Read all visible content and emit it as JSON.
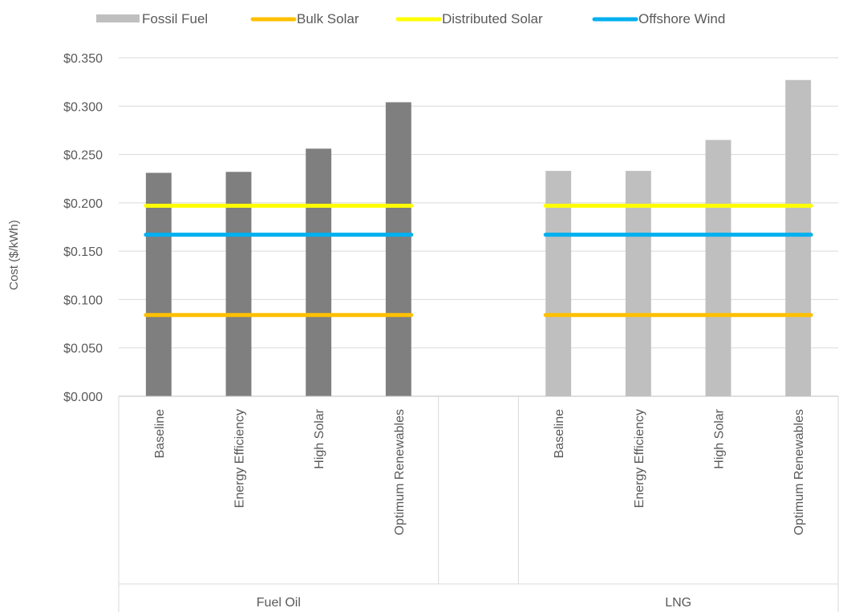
{
  "chart_data": {
    "type": "bar",
    "ylabel": "Cost ($/kWh)",
    "ylim": [
      0,
      0.35
    ],
    "yticks": [
      0,
      0.05,
      0.1,
      0.15,
      0.2,
      0.25,
      0.3,
      0.35
    ],
    "ytick_labels": [
      "$0.000",
      "$0.050",
      "$0.100",
      "$0.150",
      "$0.200",
      "$0.250",
      "$0.300",
      "$0.350"
    ],
    "grid": true,
    "legend_position": "top",
    "legend": [
      {
        "name": "Fossil Fuel",
        "kind": "bar",
        "color": "#bfbfbf"
      },
      {
        "name": "Bulk Solar",
        "kind": "line",
        "color": "#ffc000"
      },
      {
        "name": "Distributed Solar",
        "kind": "line",
        "color": "#ffff00"
      },
      {
        "name": "Offshore Wind",
        "kind": "line",
        "color": "#00b0f0"
      }
    ],
    "groups": [
      {
        "name": "Fuel Oil",
        "bar_color": "#7f7f7f",
        "categories": [
          "Baseline",
          "Energy Efficiency",
          "High Solar",
          "Optimum Renewables"
        ],
        "values": [
          0.231,
          0.232,
          0.256,
          0.304
        ]
      },
      {
        "name": "LNG",
        "bar_color": "#bfbfbf",
        "categories": [
          "Baseline",
          "Energy Efficiency",
          "High Solar",
          "Optimum Renewables"
        ],
        "values": [
          0.233,
          0.233,
          0.265,
          0.327
        ]
      }
    ],
    "reference_lines": [
      {
        "name": "Bulk Solar",
        "value": 0.084,
        "color": "#ffc000"
      },
      {
        "name": "Distributed Solar",
        "value": 0.197,
        "color": "#ffff00"
      },
      {
        "name": "Offshore Wind",
        "value": 0.167,
        "color": "#00b0f0"
      }
    ]
  }
}
